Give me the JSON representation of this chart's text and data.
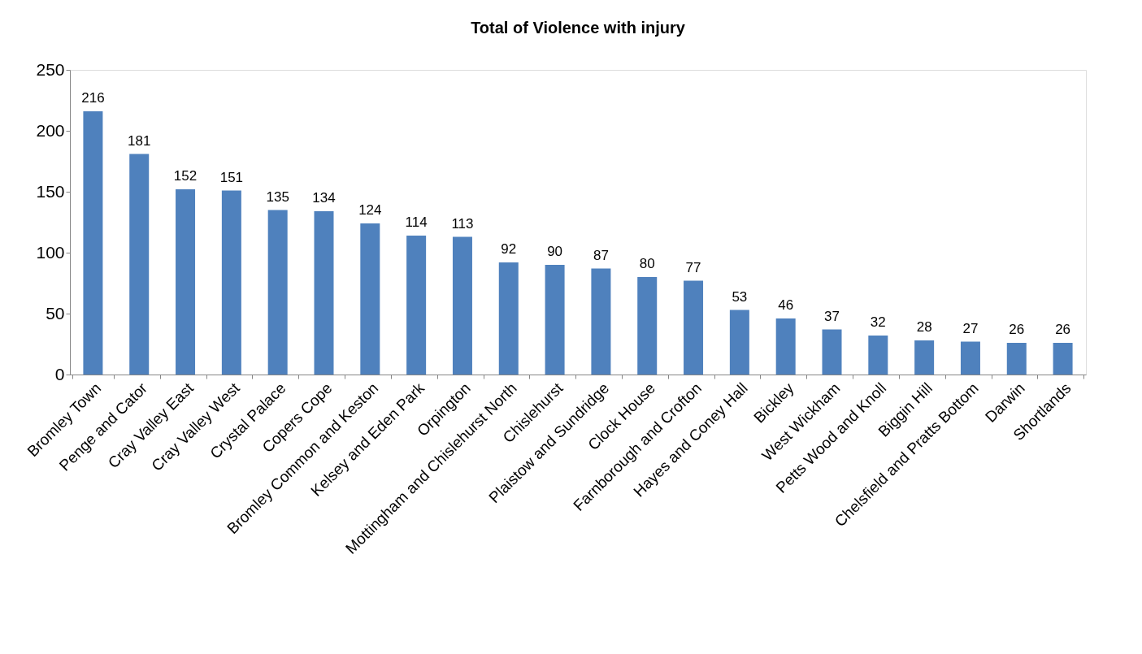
{
  "chart_data": {
    "type": "bar",
    "title": "Total of Violence with injury",
    "categories": [
      "Bromley Town",
      "Penge and Cator",
      "Cray Valley East",
      "Cray Valley West",
      "Crystal Palace",
      "Copers Cope",
      "Bromley Common and Keston",
      "Kelsey and Eden Park",
      "Orpington",
      "Mottingham and Chislehurst North",
      "Chislehurst",
      "Plaistow and Sundridge",
      "Clock House",
      "Farnborough and Crofton",
      "Hayes and Coney Hall",
      "Bickley",
      "West Wickham",
      "Petts Wood and Knoll",
      "Biggin Hill",
      "Chelsfield and Pratts Bottom",
      "Darwin",
      "Shortlands"
    ],
    "values": [
      216,
      181,
      152,
      151,
      135,
      134,
      124,
      114,
      113,
      92,
      90,
      87,
      80,
      77,
      53,
      46,
      37,
      32,
      28,
      27,
      26,
      26
    ],
    "color": "#4f81bd",
    "ylim": [
      0,
      250
    ],
    "yticks": [
      0,
      50,
      100,
      150,
      200,
      250
    ],
    "data_labels": true,
    "grid": false
  }
}
